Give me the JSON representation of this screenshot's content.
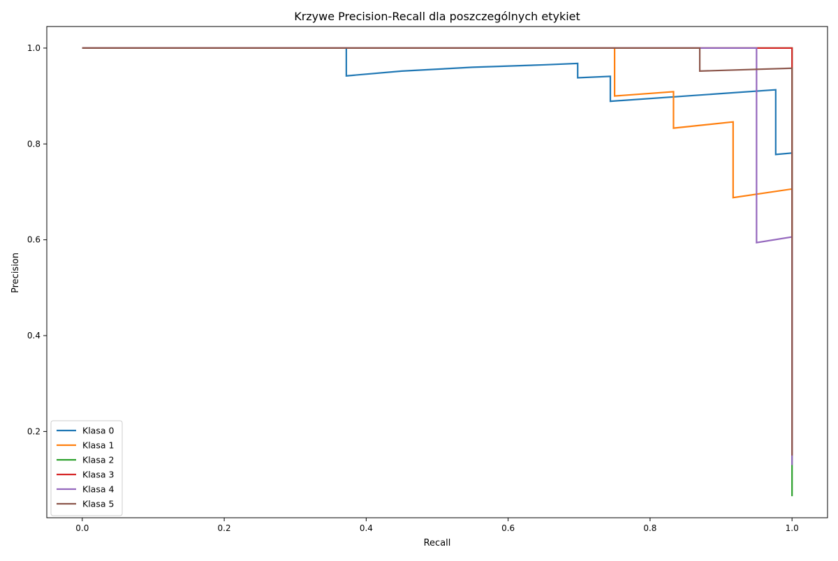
{
  "chart_data": {
    "type": "line",
    "title": "Krzywe Precision-Recall dla poszczególnych etykiet",
    "xlabel": "Recall",
    "ylabel": "Precision",
    "xlim": [
      -0.05,
      1.05
    ],
    "ylim": [
      0.02,
      1.045
    ],
    "xticks": [
      0.0,
      0.2,
      0.4,
      0.6,
      0.8,
      1.0
    ],
    "xtick_labels": [
      "0.0",
      "0.2",
      "0.4",
      "0.6",
      "0.8",
      "1.0"
    ],
    "yticks": [
      0.2,
      0.4,
      0.6,
      0.8,
      1.0
    ],
    "ytick_labels": [
      "0.2",
      "0.4",
      "0.6",
      "0.8",
      "1.0"
    ],
    "grid": false,
    "legend_position": "lower-left",
    "series": [
      {
        "name": "Klasa 0",
        "color": "#1f77b4",
        "x": [
          0.0,
          0.372,
          0.372,
          0.45,
          0.55,
          0.65,
          0.698,
          0.698,
          0.744,
          0.744,
          0.977,
          0.977,
          1.0,
          1.0
        ],
        "y": [
          1.0,
          1.0,
          0.942,
          0.952,
          0.96,
          0.965,
          0.968,
          0.938,
          0.941,
          0.889,
          0.913,
          0.778,
          0.781,
          0.28
        ]
      },
      {
        "name": "Klasa 1",
        "color": "#ff7f0e",
        "x": [
          0.0,
          0.75,
          0.75,
          0.833,
          0.833,
          0.917,
          0.917,
          1.0,
          1.0
        ],
        "y": [
          1.0,
          1.0,
          0.9,
          0.909,
          0.833,
          0.846,
          0.688,
          0.706,
          0.2
        ]
      },
      {
        "name": "Klasa 2",
        "color": "#2ca02c",
        "x": [
          0.0,
          1.0,
          1.0
        ],
        "y": [
          1.0,
          1.0,
          0.065
        ]
      },
      {
        "name": "Klasa 3",
        "color": "#d62728",
        "x": [
          0.0,
          1.0,
          1.0
        ],
        "y": [
          1.0,
          1.0,
          0.15
        ]
      },
      {
        "name": "Klasa 4",
        "color": "#9467bd",
        "x": [
          0.0,
          0.95,
          0.95,
          1.0,
          1.0
        ],
        "y": [
          1.0,
          1.0,
          0.594,
          0.606,
          0.13
        ]
      },
      {
        "name": "Klasa 5",
        "color": "#8c564b",
        "x": [
          0.0,
          0.87,
          0.87,
          1.0,
          1.0
        ],
        "y": [
          1.0,
          1.0,
          0.952,
          0.958,
          0.15
        ]
      }
    ]
  }
}
